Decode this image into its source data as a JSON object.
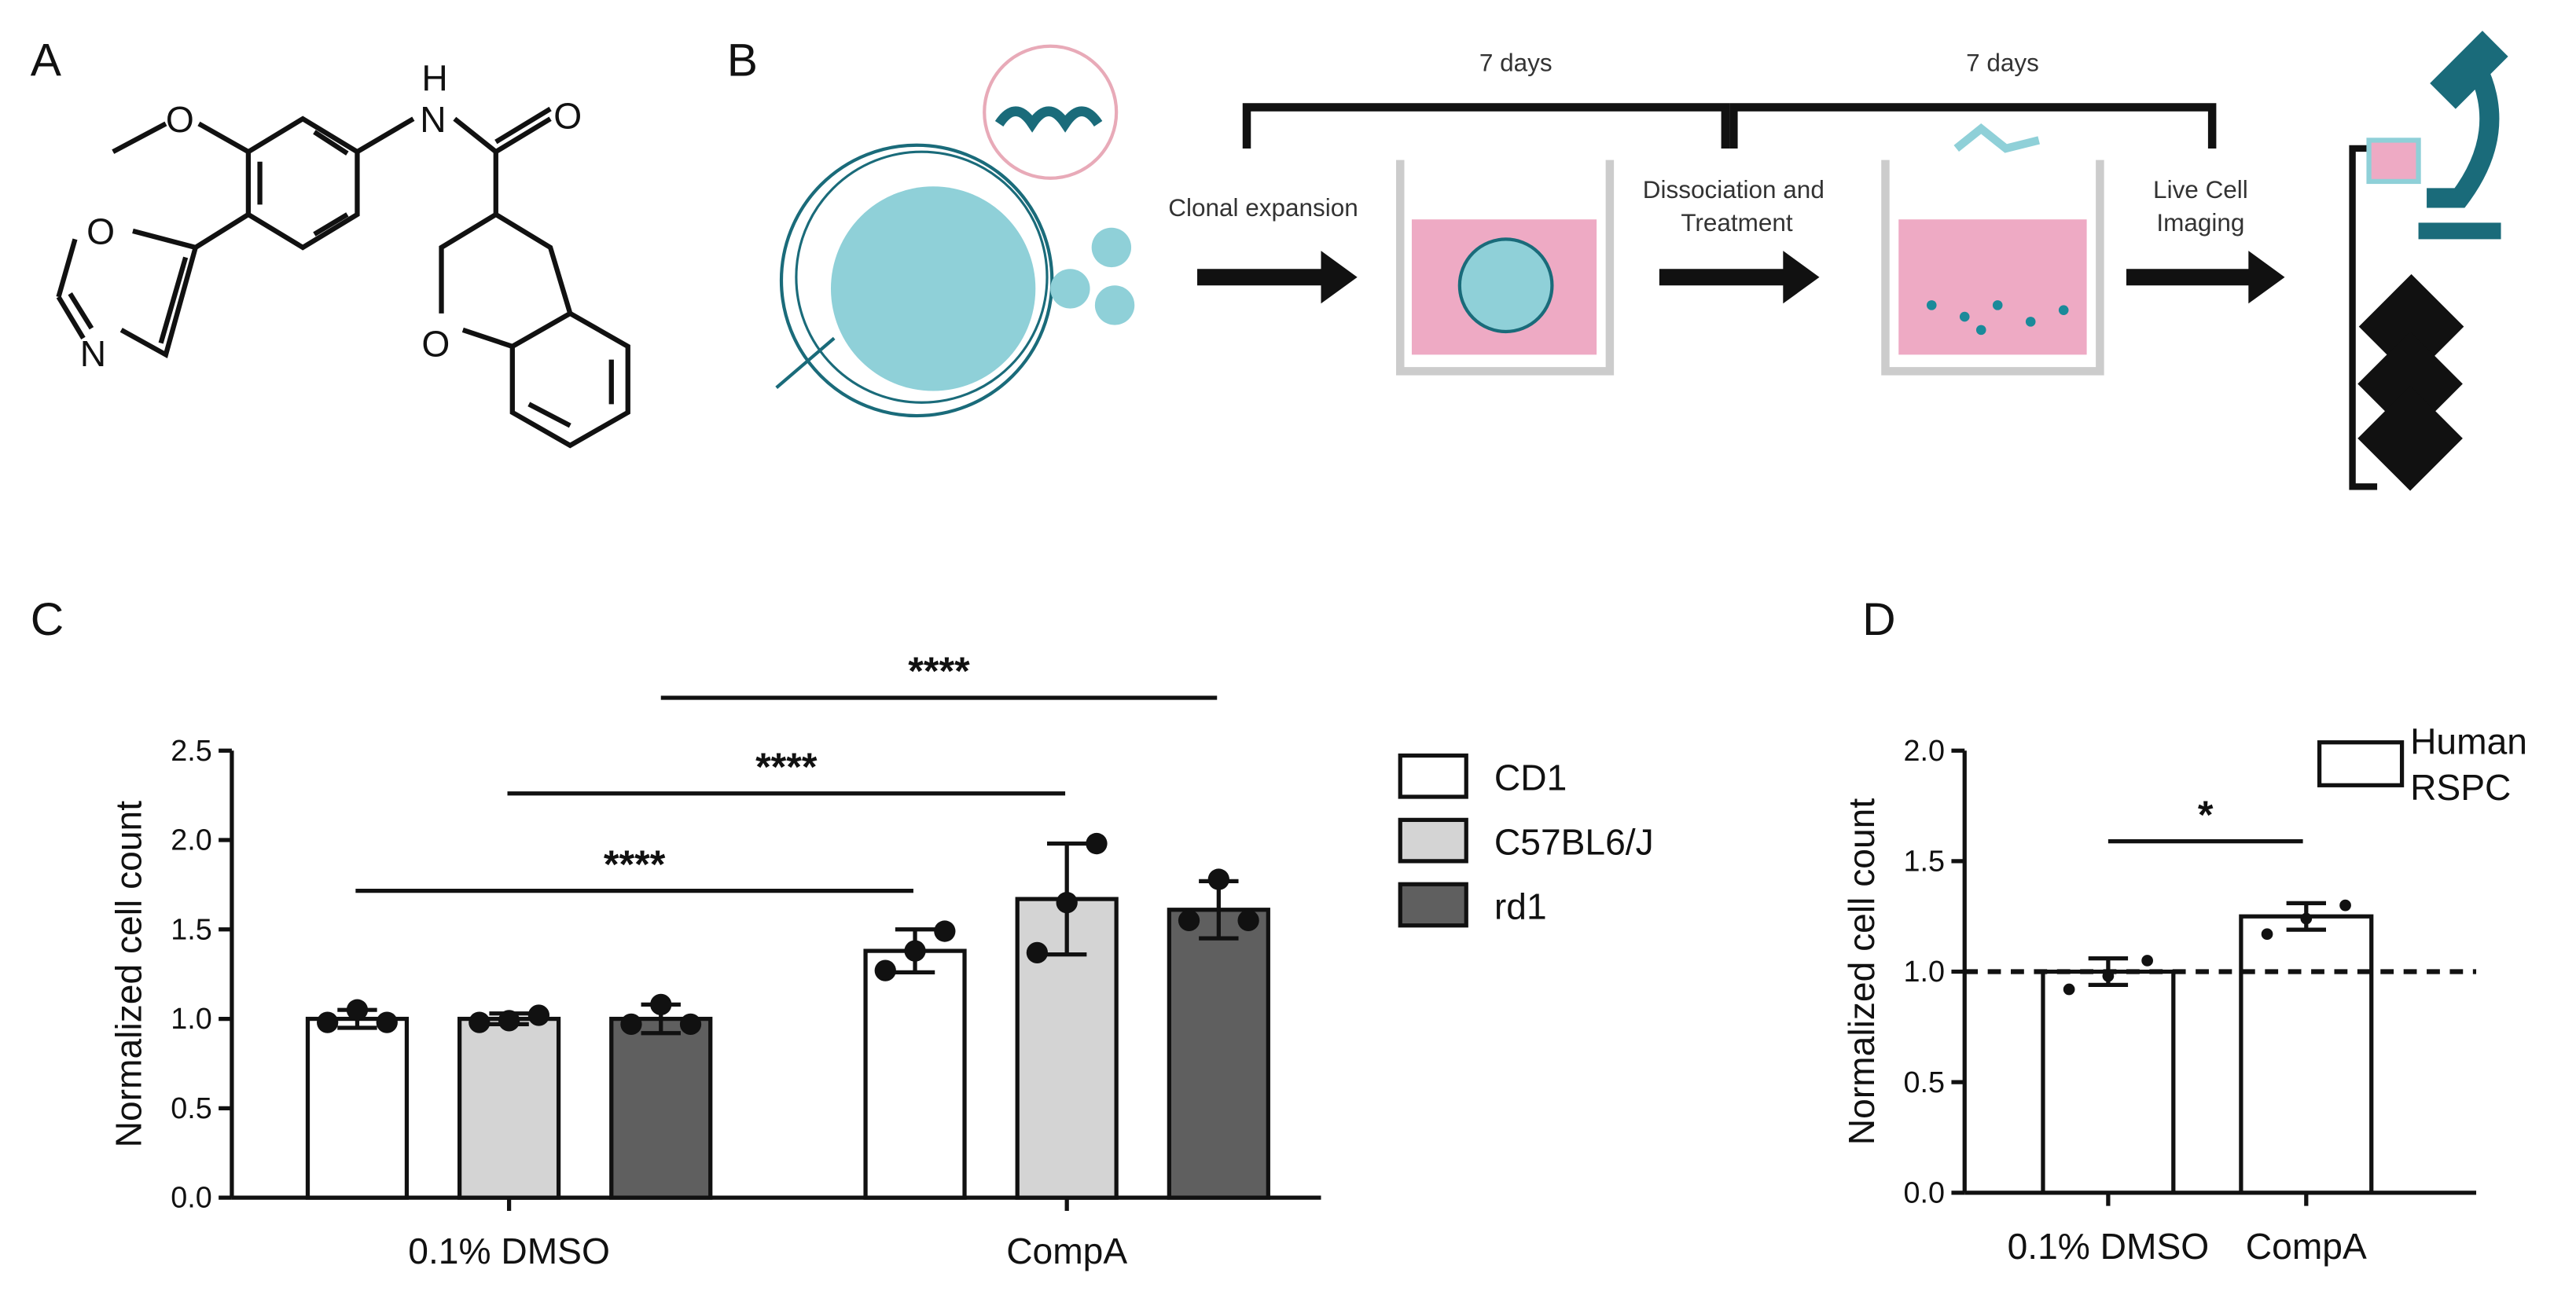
{
  "panels": [
    "A",
    "B",
    "C",
    "D"
  ],
  "molecule": {
    "atoms": [
      "O",
      "H",
      "N",
      "O",
      "O",
      "N",
      "O"
    ]
  },
  "workflow": {
    "durations": [
      "7 days",
      "7 days"
    ],
    "step1": [
      "Clonal expansion"
    ],
    "step2": [
      "Dissociation and",
      "Treatment"
    ],
    "step3": [
      "Live Cell",
      "Imaging"
    ]
  },
  "chart_data": [
    {
      "type": "bar",
      "y_label": "Normalized cell count",
      "categories": [
        "0.1% DMSO",
        "CompA"
      ],
      "series": [
        {
          "name": "CD1",
          "color": "#ffffff",
          "values": [
            1.0,
            1.38
          ],
          "errors": [
            0.05,
            0.12
          ],
          "points": [
            [
              0.98,
              1.05,
              0.98
            ],
            [
              1.27,
              1.38,
              1.49
            ]
          ]
        },
        {
          "name": "C57BL6/J",
          "color": "#d4d4d4",
          "values": [
            1.0,
            1.67
          ],
          "errors": [
            0.03,
            0.31
          ],
          "points": [
            [
              0.98,
              0.99,
              1.02
            ],
            [
              1.37,
              1.65,
              1.98
            ]
          ]
        },
        {
          "name": "rd1",
          "color": "#5f5f5f",
          "values": [
            1.0,
            1.61
          ],
          "errors": [
            0.08,
            0.16
          ],
          "points": [
            [
              0.97,
              1.08,
              0.97
            ],
            [
              1.55,
              1.78,
              1.55
            ]
          ]
        }
      ],
      "ylim": [
        0,
        2.5
      ],
      "yticks": [
        {
          "value": 0,
          "label": "0.0"
        },
        0.5,
        {
          "value": 1,
          "label": "1.0"
        },
        1.5,
        {
          "value": 2,
          "label": "2.0"
        },
        2.5
      ],
      "annotations": [
        "****",
        "****",
        "****"
      ],
      "legend": "right"
    },
    {
      "type": "bar",
      "y_label": "Normalized cell count",
      "categories": [
        "0.1% DMSO",
        "CompA"
      ],
      "series": [
        {
          "name": "Human RSPC",
          "color": "#ffffff",
          "values": [
            1.0,
            1.25
          ],
          "errors": [
            0.06,
            0.06
          ],
          "points": [
            [
              0.92,
              0.98,
              1.05
            ],
            [
              1.17,
              1.24,
              1.3
            ]
          ]
        }
      ],
      "ylim": [
        0,
        2
      ],
      "yticks": [
        {
          "value": 0,
          "label": "0.0"
        },
        0.5,
        {
          "value": 1,
          "label": "1.0"
        },
        1.5,
        {
          "value": 2,
          "label": "2.0"
        }
      ],
      "refline": 1,
      "annotations": [
        "*"
      ],
      "legend": "upper right"
    }
  ]
}
